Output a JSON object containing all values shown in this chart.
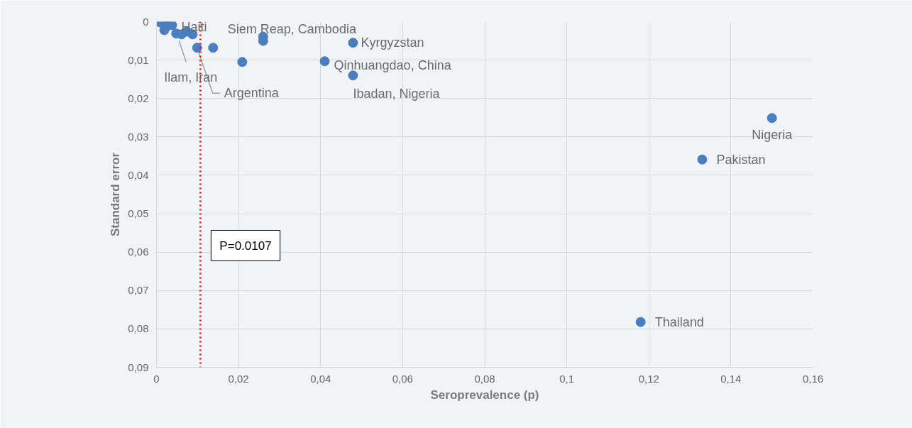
{
  "chart_data": {
    "type": "scatter",
    "xlabel": "Seroprevalence (p)",
    "ylabel": "Standard error",
    "x": [
      0.0009,
      0.0019,
      0.0026,
      0.0038,
      0.0048,
      0.0061,
      0.0074,
      0.0088,
      0.0099,
      0.0138,
      0.0209,
      0.026,
      0.026,
      0.0479,
      0.041,
      0.0479,
      0.15,
      0.133,
      0.118
    ],
    "series": [
      {
        "color": "#4a7ebf",
        "values": [
          0.0002,
          0.0022,
          0.0011,
          0.0009,
          0.0031,
          0.0033,
          0.0026,
          0.0033,
          0.0068,
          0.0068,
          0.0105,
          0.0039,
          0.005,
          0.0055,
          0.0103,
          0.014,
          0.0251,
          0.0359,
          0.0782
        ]
      }
    ],
    "xlim": [
      0,
      0.16
    ],
    "xticks": [
      0,
      {
        "value": 0.02,
        "label": "0,02"
      },
      {
        "value": 0.04,
        "label": "0,04"
      },
      {
        "value": 0.06,
        "label": "0,06"
      },
      {
        "value": 0.08,
        "label": "0,08"
      },
      {
        "value": 0.1,
        "label": "0,1"
      },
      {
        "value": 0.12,
        "label": "0,12"
      },
      {
        "value": 0.14,
        "label": "0,14"
      },
      {
        "value": 0.16,
        "label": "0,16"
      }
    ],
    "ylim": [
      0.09,
      0
    ],
    "yticks": [
      0,
      {
        "value": 0.01,
        "label": "0,01"
      },
      {
        "value": 0.02,
        "label": "0,02"
      },
      {
        "value": 0.03,
        "label": "0,03"
      },
      {
        "value": 0.04,
        "label": "0,04"
      },
      {
        "value": 0.05,
        "label": "0,05"
      },
      {
        "value": 0.06,
        "label": "0,06"
      },
      {
        "value": 0.07,
        "label": "0,07"
      },
      {
        "value": 0.08,
        "label": "0,08"
      },
      {
        "value": 0.09,
        "label": "0,09"
      }
    ],
    "grid": true,
    "marker": "circle",
    "ref_lines": [
      {
        "axis": "x",
        "value": 0.0107,
        "label": "P=0.0107",
        "color": "#e02020",
        "line_style": "dotted"
      }
    ],
    "annotations": [
      {
        "text": "Haiti",
        "x": 0.0038,
        "y": 0.0009
      },
      {
        "text": "Ilam, Iran",
        "x": 0.0048,
        "y": 0.0031
      },
      {
        "text": "Argentina",
        "x": 0.0099,
        "y": 0.0068
      },
      {
        "text": "Siem Reap, Cambodia",
        "x": 0.026,
        "y": 0.0039
      },
      {
        "text": "Kyrgyzstan",
        "x": 0.0479,
        "y": 0.0055
      },
      {
        "text": "Qinhuangdao, China",
        "x": 0.041,
        "y": 0.0103
      },
      {
        "text": "Ibadan, Nigeria",
        "x": 0.0479,
        "y": 0.014
      },
      {
        "text": "Nigeria",
        "x": 0.15,
        "y": 0.0251
      },
      {
        "text": "Pakistan",
        "x": 0.133,
        "y": 0.0359
      },
      {
        "text": "Thailand",
        "x": 0.118,
        "y": 0.0782
      }
    ]
  }
}
